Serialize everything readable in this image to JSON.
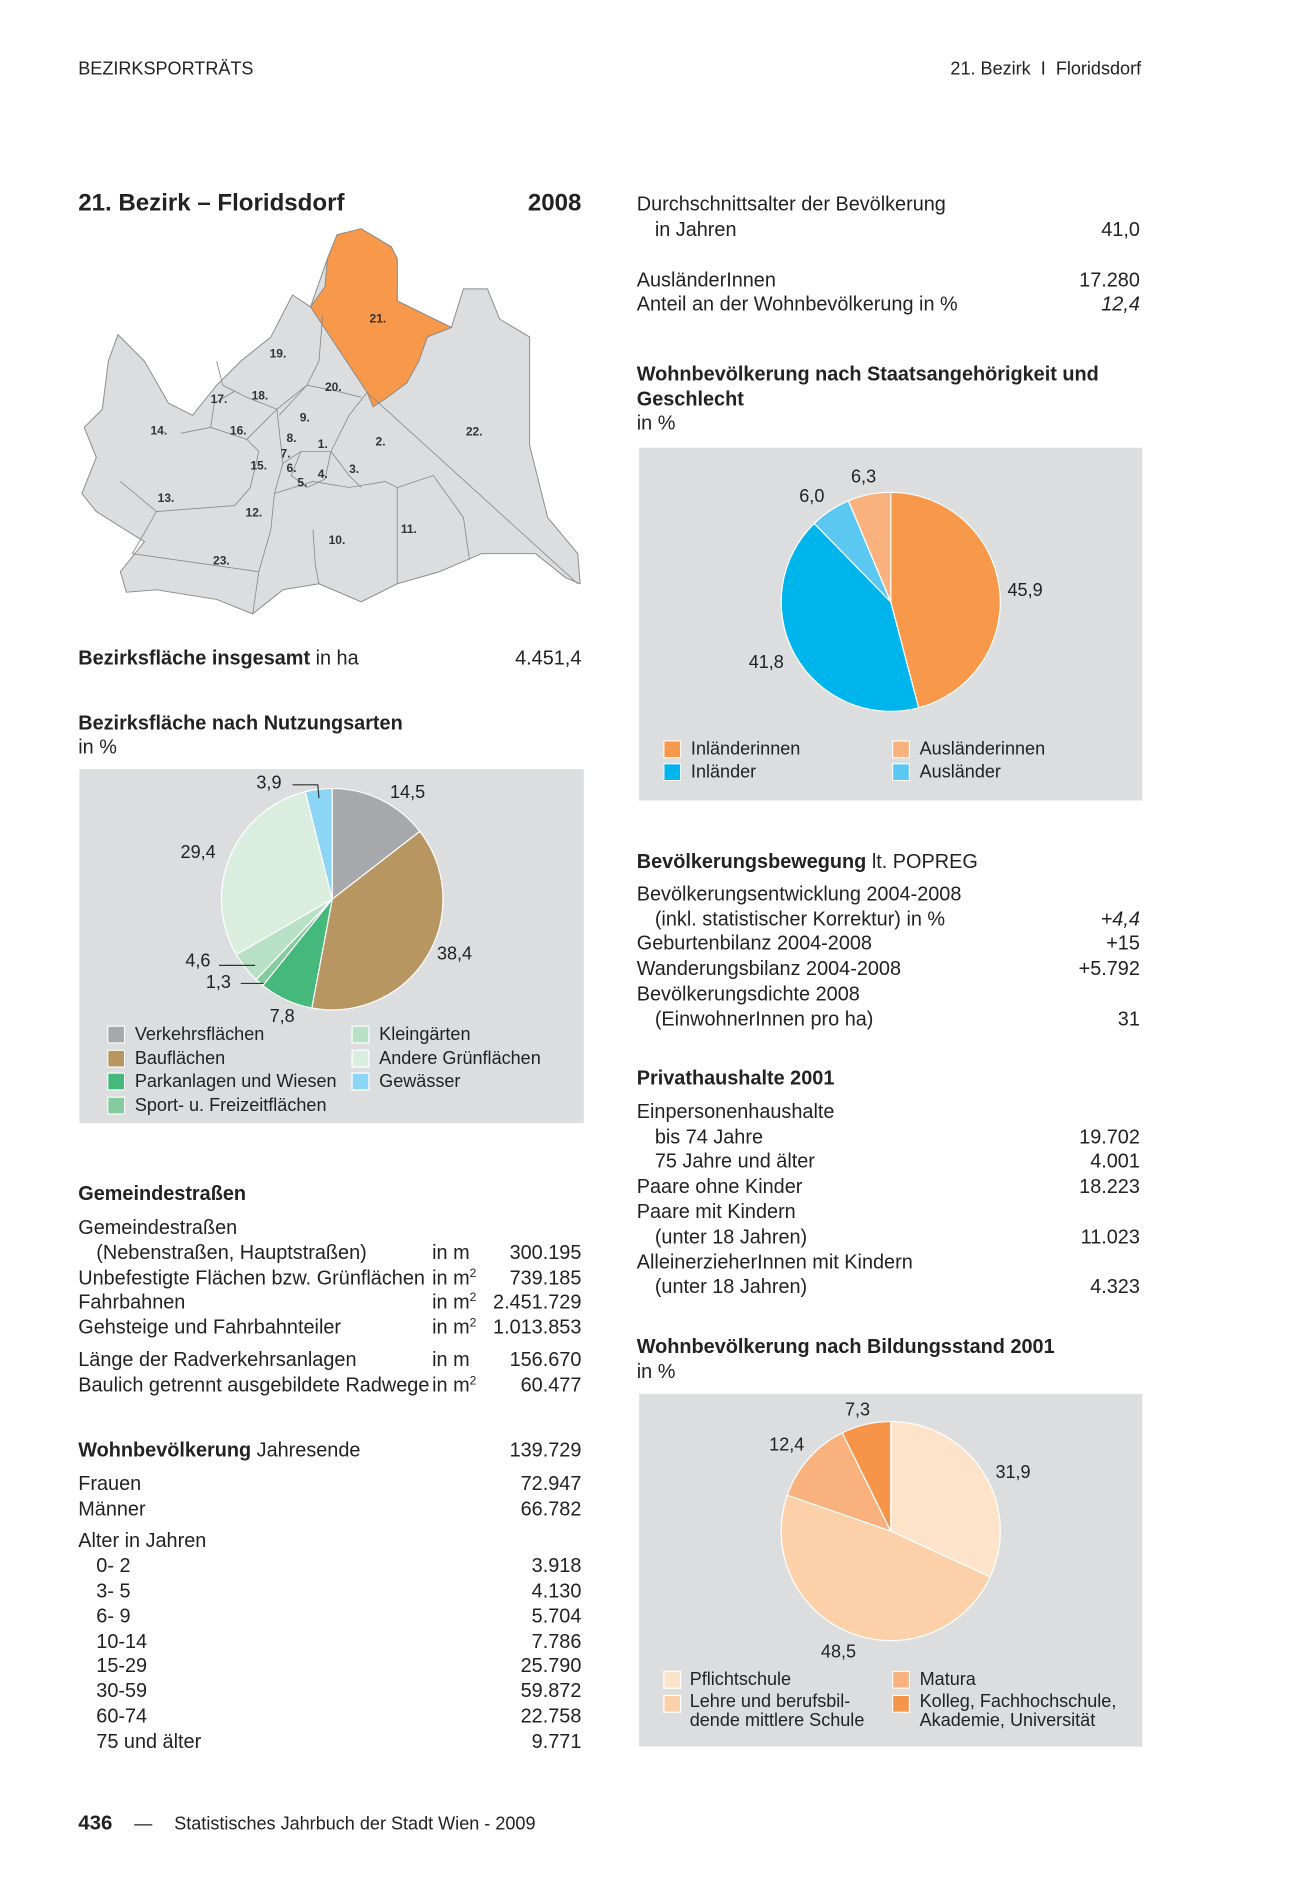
{
  "header": {
    "section": "BEZIRKSPORTRÄTS",
    "district": "21. Bezirk",
    "separator": "I",
    "name": "Floridsdorf"
  },
  "title": {
    "text": "21. Bezirk – Floridsdorf",
    "year": "2008"
  },
  "map": {
    "highlight_color": "#f7984a",
    "base_color": "#dcdddf",
    "labels": [
      "1.",
      "2.",
      "3.",
      "4.",
      "5.",
      "6.",
      "7.",
      "8.",
      "9.",
      "10.",
      "11.",
      "12.",
      "13.",
      "14.",
      "15.",
      "16.",
      "17.",
      "18.",
      "19.",
      "20.",
      "21.",
      "22.",
      "23."
    ]
  },
  "area_total": {
    "label_bold": "Bezirksfläche insgesamt",
    "label_rest": " in ha",
    "value": "4.451,4"
  },
  "land_use": {
    "title": "Bezirksfläche nach Nutzungsarten",
    "unit": "in %"
  },
  "roads": {
    "title": "Gemeindestraßen",
    "rows": [
      {
        "label": "Gemeindestraßen",
        "unit": "",
        "value": ""
      },
      {
        "label": "(Nebenstraßen, Hauptstraßen)",
        "unit": "in m",
        "value": "300.195",
        "indent": true
      },
      {
        "label": "Unbefestigte Flächen bzw. Grünflächen",
        "unit": "in m²",
        "value": "739.185"
      },
      {
        "label": "Fahrbahnen",
        "unit": "in m²",
        "value": "2.451.729"
      },
      {
        "label": "Gehsteige und Fahrbahnteiler",
        "unit": "in m²",
        "value": "1.013.853"
      },
      {
        "label": "Länge der Radverkehrsanlagen",
        "unit": "in m",
        "value": "156.670"
      },
      {
        "label": "Baulich getrennt ausgebildete Radwege",
        "unit": "in m²",
        "value": "60.477"
      }
    ]
  },
  "population": {
    "title_bold": "Wohnbevölkerung",
    "title_rest": " Jahresende",
    "total": "139.729",
    "women_label": "Frauen",
    "women": "72.947",
    "men_label": "Männer",
    "men": "66.782",
    "age_title": "Alter in Jahren",
    "ages": [
      {
        "label": "0-  2",
        "value": "3.918"
      },
      {
        "label": "3-  5",
        "value": "4.130"
      },
      {
        "label": "6-  9",
        "value": "5.704"
      },
      {
        "label": "10-14",
        "value": "7.786"
      },
      {
        "label": "15-29",
        "value": "25.790"
      },
      {
        "label": "30-59",
        "value": "59.872"
      },
      {
        "label": "60-74",
        "value": "22.758"
      },
      {
        "label": "75 und älter",
        "value": "9.771"
      }
    ]
  },
  "age_avg": {
    "label": "Durchschnittsalter der Bevölkerung",
    "sub": "in Jahren",
    "value": "41,0"
  },
  "foreigners": {
    "label": "AusländerInnen",
    "value": "17.280",
    "share_label": "Anteil an der Wohnbevölkerung in %",
    "share": "12,4"
  },
  "citizenship": {
    "title": "Wohnbevölkerung nach Staatsangehörigkeit und Geschlecht",
    "unit": "in %"
  },
  "movement": {
    "title_bold": "Bevölkerungsbewegung",
    "title_rest": " lt. POPREG",
    "rows": [
      {
        "label": "Bevölkerungsentwicklung 2004-2008",
        "value": ""
      },
      {
        "label": "(inkl. statistischer Korrektur) in %",
        "value": "+4,4",
        "indent": true,
        "italic": true
      },
      {
        "label": "Geburtenbilanz 2004-2008",
        "value": "+15"
      },
      {
        "label": "Wanderungsbilanz 2004-2008",
        "value": "+5.792"
      },
      {
        "label": "Bevölkerungsdichte 2008",
        "value": ""
      },
      {
        "label": "(EinwohnerInnen pro ha)",
        "value": "31",
        "indent": true
      }
    ]
  },
  "households": {
    "title": "Privathaushalte 2001",
    "rows": [
      {
        "label": "Einpersonenhaushalte",
        "value": ""
      },
      {
        "label": "bis 74 Jahre",
        "value": "19.702",
        "indent": true
      },
      {
        "label": "75 Jahre und älter",
        "value": "4.001",
        "indent": true
      },
      {
        "label": "Paare ohne Kinder",
        "value": "18.223"
      },
      {
        "label": "Paare mit Kindern",
        "value": ""
      },
      {
        "label": "(unter 18 Jahren)",
        "value": "11.023",
        "indent": true
      },
      {
        "label": "AlleinerzieherInnen mit Kindern",
        "value": ""
      },
      {
        "label": "(unter 18 Jahren)",
        "value": "4.323",
        "indent": true
      }
    ]
  },
  "education": {
    "title": "Wohnbevölkerung nach Bildungsstand 2001",
    "unit": "in %"
  },
  "footer": {
    "page": "436",
    "dash": "—",
    "source": "Statistisches Jahrbuch der Stadt Wien - 2009"
  },
  "chart_data": [
    {
      "type": "pie",
      "title": "Bezirksfläche nach Nutzungsarten",
      "unit": "in %",
      "slices": [
        {
          "name": "Verkehrsflächen",
          "value": 14.5,
          "label": "14,5",
          "color": "#a7a8ab"
        },
        {
          "name": "Bauflächen",
          "value": 38.4,
          "label": "38,4",
          "color": "#b89662"
        },
        {
          "name": "Parkanlagen und Wiesen",
          "value": 7.8,
          "label": "7,8",
          "color": "#45b97c"
        },
        {
          "name": "Sport- u. Freizeitflächen",
          "value": 1.3,
          "label": "1,3",
          "color": "#84cc9e"
        },
        {
          "name": "Kleingärten",
          "value": 4.6,
          "label": "4,6",
          "color": "#b8e0c6"
        },
        {
          "name": "Andere Grünflächen",
          "value": 29.4,
          "label": "29,4",
          "color": "#d9eedf"
        },
        {
          "name": "Gewässer",
          "value": 3.9,
          "label": "3,9",
          "color": "#8dd5f5"
        }
      ],
      "legend_order": [
        0,
        4,
        1,
        5,
        2,
        6,
        3
      ]
    },
    {
      "type": "pie",
      "title": "Wohnbevölkerung nach Staatsangehörigkeit und Geschlecht",
      "unit": "in %",
      "slices": [
        {
          "name": "Inländerinnen",
          "value": 45.9,
          "label": "45,9",
          "color": "#f7984a"
        },
        {
          "name": "Inländer",
          "value": 41.8,
          "label": "41,8",
          "color": "#00b4ec"
        },
        {
          "name": "Ausländer",
          "value": 6.0,
          "label": "6,0",
          "color": "#5bc8f2"
        },
        {
          "name": "Ausländerinnen",
          "value": 6.3,
          "label": "6,3",
          "color": "#f9b27e"
        }
      ]
    },
    {
      "type": "pie",
      "title": "Wohnbevölkerung nach Bildungsstand 2001",
      "unit": "in %",
      "slices": [
        {
          "name": "Pflichtschule",
          "value": 31.9,
          "label": "31,9",
          "color": "#fde3ca"
        },
        {
          "name": "Lehre und berufsbildende mittlere Schule",
          "value": 48.5,
          "label": "48,5",
          "color": "#fcd1aa"
        },
        {
          "name": "Matura",
          "value": 12.4,
          "label": "12,4",
          "color": "#f9b27e"
        },
        {
          "name": "Kolleg, Fachhochschule, Akademie, Universität",
          "value": 7.3,
          "label": "7,3",
          "color": "#f6954a"
        }
      ],
      "legend_lines": [
        "Pflichtschule",
        "Lehre und berufsbil-",
        "dende mittlere Schule",
        "Matura",
        "Kolleg, Fachhochschule,",
        "Akademie, Universität"
      ]
    }
  ]
}
